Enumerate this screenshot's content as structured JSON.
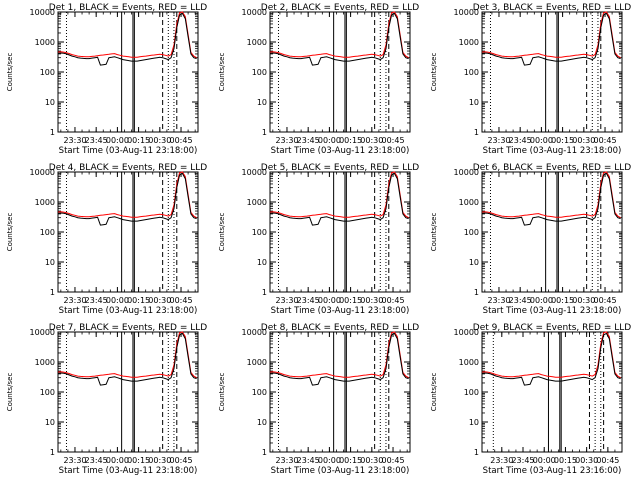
{
  "chart_data": [
    {
      "type": "line",
      "title": "Det 1, BLACK = Events, RED = LLD",
      "xlabel": "Start Time (03-Aug-11 23:18:00)",
      "ylabel": "Counts/sec",
      "yscale": "log",
      "ylim": [
        1,
        10000
      ],
      "xlim": [
        "23:18",
        "00:57"
      ],
      "x_ticks": [
        "23:30",
        "23:45",
        "00:00",
        "00:15",
        "00:30",
        "00:45"
      ],
      "y_ticks": [
        "1",
        "10",
        "100",
        "1000",
        "10000"
      ],
      "grid": false,
      "legend": "in title",
      "series": [
        {
          "color": "#000000"
        },
        {
          "color": "#ff0000"
        }
      ]
    },
    {
      "type": "line",
      "title": "Det 2, BLACK = Events, RED = LLD",
      "xlabel": "Start Time (03-Aug-11 23:18:00)",
      "ylabel": "Counts/sec",
      "yscale": "log",
      "ylim": [
        1,
        10000
      ],
      "xlim": [
        "23:18",
        "00:57"
      ],
      "x_ticks": [
        "23:30",
        "23:45",
        "00:00",
        "00:15",
        "00:30",
        "00:45"
      ],
      "y_ticks": [
        "1",
        "10",
        "100",
        "1000",
        "10000"
      ],
      "grid": false,
      "legend": "in title",
      "series": [
        {
          "color": "#000000"
        },
        {
          "color": "#ff0000"
        }
      ]
    },
    {
      "type": "line",
      "title": "Det 3, BLACK = Events, RED = LLD",
      "xlabel": "Start Time (03-Aug-11 23:18:00)",
      "ylabel": "Counts/sec",
      "yscale": "log",
      "ylim": [
        1,
        10000
      ],
      "xlim": [
        "23:18",
        "00:57"
      ],
      "x_ticks": [
        "23:30",
        "23:45",
        "00:00",
        "00:15",
        "00:30",
        "00:45"
      ],
      "y_ticks": [
        "1",
        "10",
        "100",
        "1000",
        "10000"
      ],
      "grid": false,
      "legend": "in title",
      "series": [
        {
          "color": "#000000"
        },
        {
          "color": "#ff0000"
        }
      ]
    },
    {
      "type": "line",
      "title": "Det 4, BLACK = Events, RED = LLD",
      "xlabel": "Start Time (03-Aug-11 23:18:00)",
      "ylabel": "Counts/sec",
      "yscale": "log",
      "ylim": [
        1,
        10000
      ],
      "xlim": [
        "23:18",
        "00:57"
      ],
      "x_ticks": [
        "23:30",
        "23:45",
        "00:00",
        "00:15",
        "00:30",
        "00:45"
      ],
      "y_ticks": [
        "1",
        "10",
        "100",
        "1000",
        "10000"
      ],
      "grid": false,
      "legend": "in title",
      "series": [
        {
          "color": "#000000"
        },
        {
          "color": "#ff0000"
        }
      ]
    },
    {
      "type": "line",
      "title": "Det 5, BLACK = Events, RED = LLD",
      "xlabel": "Start Time (03-Aug-11 23:18:00)",
      "ylabel": "Counts/sec",
      "yscale": "log",
      "ylim": [
        1,
        10000
      ],
      "xlim": [
        "23:18",
        "00:57"
      ],
      "x_ticks": [
        "23:30",
        "23:45",
        "00:00",
        "00:15",
        "00:30",
        "00:45"
      ],
      "y_ticks": [
        "1",
        "10",
        "100",
        "1000",
        "10000"
      ],
      "grid": false,
      "legend": "in title",
      "series": [
        {
          "color": "#000000"
        },
        {
          "color": "#ff0000"
        }
      ]
    },
    {
      "type": "line",
      "title": "Det 6, BLACK = Events, RED = LLD",
      "xlabel": "Start Time (03-Aug-11 23:18:00)",
      "ylabel": "Counts/sec",
      "yscale": "log",
      "ylim": [
        1,
        10000
      ],
      "xlim": [
        "23:18",
        "00:57"
      ],
      "x_ticks": [
        "23:30",
        "23:45",
        "00:00",
        "00:15",
        "00:30",
        "00:45"
      ],
      "y_ticks": [
        "1",
        "10",
        "100",
        "1000",
        "10000"
      ],
      "grid": false,
      "legend": "in title",
      "series": [
        {
          "color": "#000000"
        },
        {
          "color": "#ff0000"
        }
      ]
    },
    {
      "type": "line",
      "title": "Det 7, BLACK = Events, RED = LLD",
      "xlabel": "Start Time (03-Aug-11 23:18:00)",
      "ylabel": "Counts/sec",
      "yscale": "log",
      "ylim": [
        1,
        10000
      ],
      "xlim": [
        "23:18",
        "00:57"
      ],
      "x_ticks": [
        "23:30",
        "23:45",
        "00:00",
        "00:15",
        "00:30",
        "00:45"
      ],
      "y_ticks": [
        "1",
        "10",
        "100",
        "1000",
        "10000"
      ],
      "grid": false,
      "legend": "in title",
      "series": [
        {
          "color": "#000000"
        },
        {
          "color": "#ff0000"
        }
      ]
    },
    {
      "type": "line",
      "title": "Det 8, BLACK = Events, RED = LLD",
      "xlabel": "Start Time (03-Aug-11 23:18:00)",
      "ylabel": "Counts/sec",
      "yscale": "log",
      "ylim": [
        1,
        10000
      ],
      "xlim": [
        "23:18",
        "00:57"
      ],
      "x_ticks": [
        "23:30",
        "23:45",
        "00:00",
        "00:15",
        "00:30",
        "00:45"
      ],
      "y_ticks": [
        "1",
        "10",
        "100",
        "1000",
        "10000"
      ],
      "grid": false,
      "legend": "in title",
      "series": [
        {
          "color": "#000000"
        },
        {
          "color": "#ff0000"
        }
      ]
    },
    {
      "type": "line",
      "title": "Det 9, BLACK = Events, RED = LLD",
      "xlabel": "Start Time (03-Aug-11 23:16:00)",
      "ylabel": "Counts/sec",
      "yscale": "log",
      "ylim": [
        1,
        10000
      ],
      "xlim": [
        "23:16",
        "00:55"
      ],
      "x_ticks": [
        "23:30",
        "23:45",
        "00:00",
        "00:15",
        "00:30",
        "00:45"
      ],
      "y_ticks": [
        "1",
        "10",
        "100",
        "1000",
        "10000"
      ],
      "grid": false,
      "legend": "in title",
      "series": [
        {
          "color": "#000000"
        },
        {
          "color": "#ff0000"
        }
      ]
    }
  ],
  "shared_series": {
    "minutes_after_start": [
      0,
      2,
      4,
      6,
      8,
      10,
      12,
      14,
      16,
      18,
      20,
      22,
      24,
      26,
      28,
      30,
      32,
      34,
      36,
      38,
      40,
      42,
      44,
      46,
      48,
      50,
      52,
      54,
      56,
      58,
      60,
      62,
      64,
      66,
      68,
      70,
      72,
      74,
      76,
      78,
      80,
      82,
      84,
      86,
      88,
      90,
      92,
      94,
      96,
      98
    ],
    "events": [
      420,
      430,
      420,
      400,
      370,
      340,
      320,
      300,
      290,
      285,
      280,
      280,
      290,
      300,
      310,
      170,
      175,
      180,
      300,
      310,
      320,
      300,
      280,
      260,
      250,
      240,
      230,
      230,
      230,
      240,
      250,
      260,
      270,
      280,
      290,
      300,
      310,
      300,
      280,
      260,
      300,
      600,
      3000,
      8000,
      9000,
      6000,
      1500,
      400,
      300,
      280
    ],
    "lld": [
      460,
      470,
      460,
      440,
      410,
      380,
      360,
      340,
      330,
      325,
      320,
      320,
      330,
      340,
      350,
      360,
      370,
      380,
      390,
      400,
      410,
      380,
      360,
      340,
      330,
      320,
      310,
      310,
      310,
      320,
      330,
      340,
      350,
      360,
      370,
      380,
      390,
      380,
      360,
      340,
      380,
      800,
      4000,
      9500,
      10000,
      7000,
      1800,
      450,
      340,
      300
    ]
  }
}
